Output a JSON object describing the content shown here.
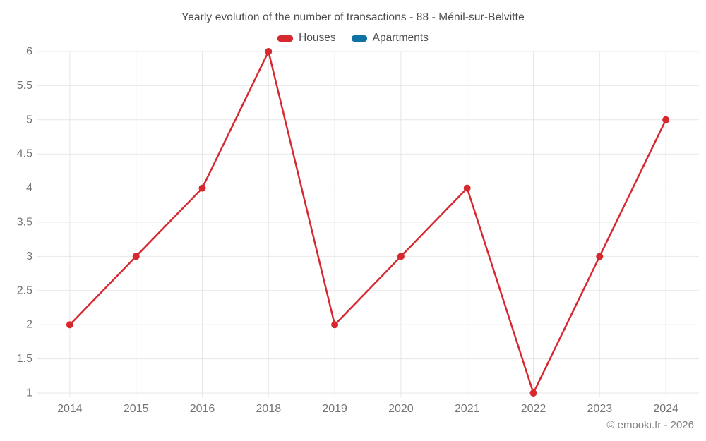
{
  "header": {
    "title": "Yearly evolution of the number of transactions - 88 - Ménil-sur-Belvitte"
  },
  "footer": {
    "credit": "© emooki.fr - 2026"
  },
  "colors": {
    "houses_red": "#d7282f",
    "apartments_blue": "#0e72a3",
    "gridline": "#e7e7e7",
    "tick_text": "#737373",
    "title_text": "#4c4c4c"
  },
  "chart_data": {
    "type": "line",
    "title": "Yearly evolution of the number of transactions - 88 - Ménil-sur-Belvitte",
    "categories": [
      "2014",
      "2015",
      "2016",
      "2018",
      "2019",
      "2020",
      "2021",
      "2022",
      "2023",
      "2024"
    ],
    "series": [
      {
        "name": "Houses",
        "color": "#d7282f",
        "values": [
          2,
          3,
          4,
          6,
          2,
          3,
          4,
          1,
          3,
          5
        ]
      },
      {
        "name": "Apartments",
        "color": "#0e72a3",
        "values": []
      }
    ],
    "xlabel": "",
    "ylabel": "",
    "ylim": [
      1,
      6
    ],
    "ytick_step": 0.5,
    "grid": true,
    "legend_position": "top",
    "marker": "circle"
  }
}
